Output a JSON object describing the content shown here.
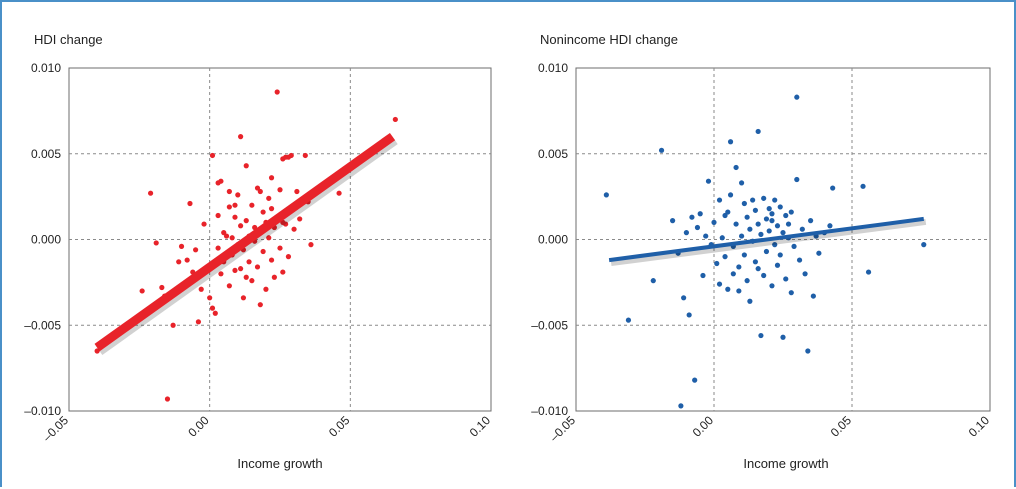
{
  "colors": {
    "frame": "#4a90c8",
    "left_series": "#e8232a",
    "right_series": "#1f5fa8",
    "grid": "#8a8a8a",
    "axis": "#6d6d6d"
  },
  "chart_data": [
    {
      "type": "scatter",
      "title": "HDI change",
      "xlabel": "Income growth",
      "ylabel": "",
      "xlim": [
        -0.05,
        0.1
      ],
      "ylim": [
        -0.01,
        0.01
      ],
      "x_ticks": [
        -0.05,
        0.0,
        0.05,
        0.1
      ],
      "x_tick_labels": [
        "–0.05",
        "0.00",
        "0.05",
        "0.10"
      ],
      "y_ticks": [
        0.01,
        0.005,
        0.0,
        -0.005,
        -0.01
      ],
      "y_tick_labels": [
        "0.010",
        "0.005",
        "0.000",
        "–0.005",
        "–0.010"
      ],
      "grid": "dashed at tick values",
      "fit_line": {
        "x": [
          -0.04,
          0.065
        ],
        "y": [
          -0.0063,
          0.006
        ]
      },
      "points": [
        [
          -0.04,
          -0.0065
        ],
        [
          -0.024,
          -0.003
        ],
        [
          -0.021,
          0.0027
        ],
        [
          -0.019,
          -0.0002
        ],
        [
          -0.017,
          -0.0028
        ],
        [
          -0.016,
          -0.0033
        ],
        [
          -0.015,
          -0.0093
        ],
        [
          -0.013,
          -0.005
        ],
        [
          -0.011,
          -0.0013
        ],
        [
          -0.01,
          -0.0004
        ],
        [
          -0.008,
          -0.0012
        ],
        [
          -0.007,
          0.0021
        ],
        [
          -0.006,
          -0.0019
        ],
        [
          -0.005,
          -0.0006
        ],
        [
          -0.004,
          -0.0048
        ],
        [
          -0.003,
          -0.0029
        ],
        [
          -0.002,
          0.0009
        ],
        [
          -0.001,
          -0.0016
        ],
        [
          0.0,
          -0.0034
        ],
        [
          0.001,
          0.0049
        ],
        [
          0.001,
          -0.004
        ],
        [
          0.002,
          -0.0043
        ],
        [
          0.003,
          -0.0005
        ],
        [
          0.003,
          0.0014
        ],
        [
          0.004,
          -0.002
        ],
        [
          0.004,
          0.0034
        ],
        [
          0.005,
          0.0004
        ],
        [
          0.005,
          -0.0013
        ],
        [
          0.006,
          -0.0008
        ],
        [
          0.006,
          0.0002
        ],
        [
          0.007,
          0.0019
        ],
        [
          0.007,
          -0.0027
        ],
        [
          0.008,
          0.0001
        ],
        [
          0.008,
          -0.0009
        ],
        [
          0.009,
          0.0013
        ],
        [
          0.009,
          -0.0018
        ],
        [
          0.01,
          0.0026
        ],
        [
          0.01,
          -0.0003
        ],
        [
          0.011,
          0.006
        ],
        [
          0.011,
          0.0008
        ],
        [
          0.012,
          -0.0034
        ],
        [
          0.012,
          -0.0006
        ],
        [
          0.013,
          0.0043
        ],
        [
          0.013,
          0.0011
        ],
        [
          0.014,
          -0.0013
        ],
        [
          0.014,
          0.0002
        ],
        [
          0.015,
          0.002
        ],
        [
          0.015,
          -0.0024
        ],
        [
          0.016,
          0.0007
        ],
        [
          0.016,
          -0.0001
        ],
        [
          0.017,
          0.003
        ],
        [
          0.017,
          -0.0016
        ],
        [
          0.018,
          0.0004
        ],
        [
          0.018,
          -0.0038
        ],
        [
          0.019,
          0.0016
        ],
        [
          0.019,
          -0.0007
        ],
        [
          0.02,
          0.001
        ],
        [
          0.02,
          -0.0029
        ],
        [
          0.021,
          0.0001
        ],
        [
          0.021,
          0.0024
        ],
        [
          0.022,
          -0.0012
        ],
        [
          0.022,
          0.0036
        ],
        [
          0.023,
          0.0007
        ],
        [
          0.023,
          -0.0022
        ],
        [
          0.024,
          0.0086
        ],
        [
          0.024,
          0.0013
        ],
        [
          0.025,
          -0.0005
        ],
        [
          0.025,
          0.0029
        ],
        [
          0.026,
          0.0047
        ],
        [
          0.026,
          -0.0019
        ],
        [
          0.027,
          0.0009
        ],
        [
          0.027,
          0.0048
        ],
        [
          0.028,
          0.0048
        ],
        [
          0.028,
          -0.001
        ],
        [
          0.029,
          0.0049
        ],
        [
          0.03,
          0.0006
        ],
        [
          0.031,
          0.0028
        ],
        [
          0.032,
          0.0012
        ],
        [
          0.034,
          0.0049
        ],
        [
          0.035,
          0.0022
        ],
        [
          0.036,
          -0.0003
        ],
        [
          0.045,
          0.0037
        ],
        [
          0.046,
          0.0027
        ],
        [
          0.066,
          0.007
        ],
        [
          0.003,
          0.0033
        ],
        [
          0.009,
          0.002
        ],
        [
          0.013,
          -0.0022
        ],
        [
          0.018,
          0.0028
        ],
        [
          0.022,
          0.0018
        ],
        [
          0.026,
          0.001
        ],
        [
          0.011,
          -0.0017
        ],
        [
          0.007,
          0.0028
        ]
      ]
    },
    {
      "type": "scatter",
      "title": "Nonincome HDI change",
      "xlabel": "Income growth",
      "ylabel": "",
      "xlim": [
        -0.05,
        0.1
      ],
      "ylim": [
        -0.01,
        0.01
      ],
      "x_ticks": [
        -0.05,
        0.0,
        0.05,
        0.1
      ],
      "x_tick_labels": [
        "–0.05",
        "0.00",
        "0.05",
        "0.10"
      ],
      "y_ticks": [
        0.01,
        0.005,
        0.0,
        -0.005,
        -0.01
      ],
      "y_tick_labels": [
        "0.010",
        "0.005",
        "0.000",
        "–0.005",
        "–0.010"
      ],
      "grid": "dashed at tick values",
      "fit_line": {
        "x": [
          -0.038,
          0.076
        ],
        "y": [
          -0.0012,
          0.0012
        ]
      },
      "points": [
        [
          -0.039,
          0.0026
        ],
        [
          -0.031,
          -0.0047
        ],
        [
          -0.022,
          -0.0024
        ],
        [
          -0.019,
          0.0052
        ],
        [
          -0.015,
          0.0011
        ],
        [
          -0.013,
          -0.0008
        ],
        [
          -0.012,
          -0.0097
        ],
        [
          -0.011,
          -0.0034
        ],
        [
          -0.01,
          0.0004
        ],
        [
          -0.009,
          -0.0044
        ],
        [
          -0.008,
          0.0013
        ],
        [
          -0.007,
          -0.0082
        ],
        [
          -0.006,
          0.0007
        ],
        [
          -0.005,
          0.0015
        ],
        [
          -0.004,
          -0.0021
        ],
        [
          -0.003,
          0.0002
        ],
        [
          -0.002,
          0.0034
        ],
        [
          -0.001,
          -0.0003
        ],
        [
          0.0,
          0.001
        ],
        [
          0.001,
          -0.0014
        ],
        [
          0.002,
          -0.0026
        ],
        [
          0.002,
          0.0023
        ],
        [
          0.003,
          0.0001
        ],
        [
          0.004,
          -0.001
        ],
        [
          0.005,
          0.0016
        ],
        [
          0.005,
          -0.0029
        ],
        [
          0.006,
          0.0057
        ],
        [
          0.006,
          0.0026
        ],
        [
          0.007,
          -0.0004
        ],
        [
          0.007,
          -0.002
        ],
        [
          0.008,
          0.0042
        ],
        [
          0.008,
          0.0009
        ],
        [
          0.009,
          -0.003
        ],
        [
          0.009,
          -0.0016
        ],
        [
          0.01,
          0.0033
        ],
        [
          0.01,
          0.0002
        ],
        [
          0.011,
          0.0021
        ],
        [
          0.011,
          -0.0009
        ],
        [
          0.012,
          -0.0024
        ],
        [
          0.012,
          0.0013
        ],
        [
          0.013,
          0.0006
        ],
        [
          0.013,
          -0.0036
        ],
        [
          0.014,
          0.0023
        ],
        [
          0.014,
          -0.0001
        ],
        [
          0.015,
          0.0017
        ],
        [
          0.015,
          -0.0013
        ],
        [
          0.016,
          0.0063
        ],
        [
          0.016,
          0.0009
        ],
        [
          0.017,
          -0.0056
        ],
        [
          0.017,
          0.0003
        ],
        [
          0.018,
          0.0024
        ],
        [
          0.018,
          -0.0021
        ],
        [
          0.019,
          0.0012
        ],
        [
          0.019,
          -0.0007
        ],
        [
          0.02,
          0.0018
        ],
        [
          0.02,
          0.0005
        ],
        [
          0.021,
          -0.0027
        ],
        [
          0.021,
          0.0011
        ],
        [
          0.022,
          -0.0003
        ],
        [
          0.022,
          0.0023
        ],
        [
          0.023,
          0.0008
        ],
        [
          0.023,
          -0.0015
        ],
        [
          0.024,
          0.0019
        ],
        [
          0.024,
          -0.0009
        ],
        [
          0.025,
          0.0004
        ],
        [
          0.025,
          -0.0057
        ],
        [
          0.026,
          0.0014
        ],
        [
          0.026,
          -0.0023
        ],
        [
          0.027,
          0.0001
        ],
        [
          0.027,
          0.0009
        ],
        [
          0.028,
          -0.0031
        ],
        [
          0.028,
          0.0016
        ],
        [
          0.029,
          -0.0004
        ],
        [
          0.03,
          0.0083
        ],
        [
          0.03,
          0.0035
        ],
        [
          0.031,
          -0.0012
        ],
        [
          0.032,
          0.0006
        ],
        [
          0.033,
          -0.002
        ],
        [
          0.034,
          -0.0065
        ],
        [
          0.035,
          0.0011
        ],
        [
          0.036,
          -0.0033
        ],
        [
          0.037,
          0.0002
        ],
        [
          0.038,
          -0.0008
        ],
        [
          0.04,
          0.0004
        ],
        [
          0.042,
          0.0008
        ],
        [
          0.043,
          0.003
        ],
        [
          0.054,
          0.0031
        ],
        [
          0.056,
          -0.0019
        ],
        [
          0.076,
          -0.0003
        ],
        [
          0.004,
          0.0014
        ],
        [
          0.016,
          -0.0017
        ],
        [
          0.021,
          0.0015
        ]
      ]
    }
  ]
}
